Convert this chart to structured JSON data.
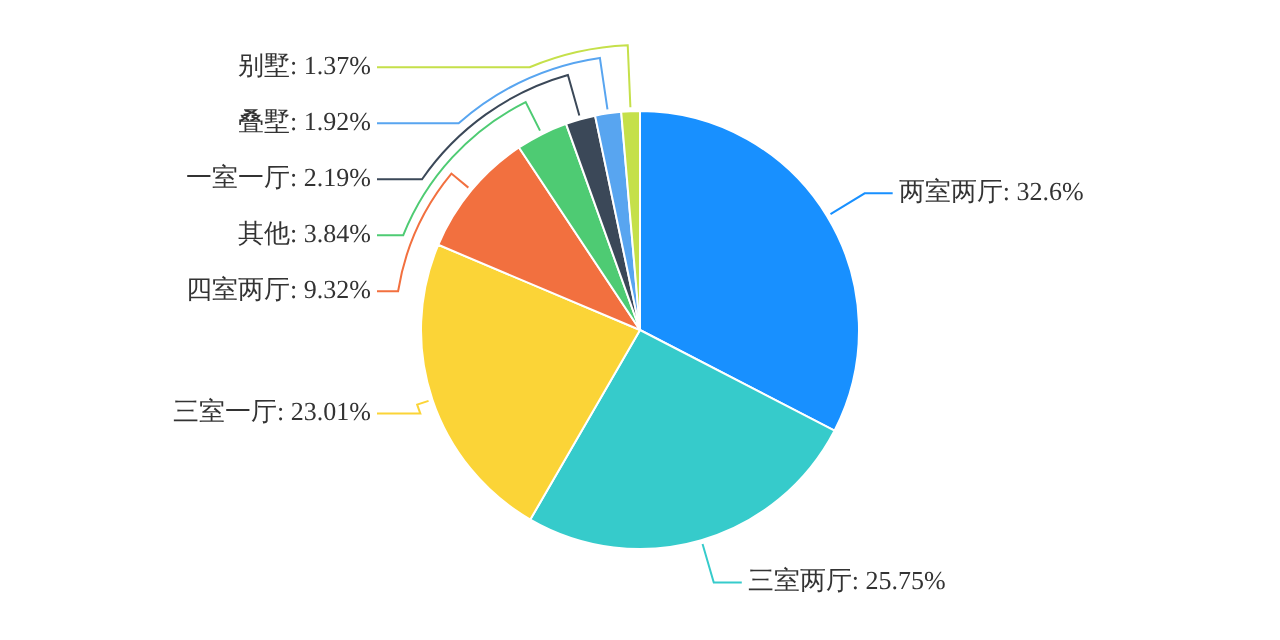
{
  "chart_data": {
    "type": "pie",
    "categories": [
      "两室两厅",
      "三室两厅",
      "三室一厅",
      "四室两厅",
      "其他",
      "一室一厅",
      "叠墅",
      "别墅"
    ],
    "values": [
      32.6,
      25.75,
      23.01,
      9.32,
      3.84,
      2.19,
      1.92,
      1.37
    ],
    "value_labels": [
      "32.6%",
      "25.75%",
      "23.01%",
      "9.32%",
      "3.84%",
      "2.19%",
      "1.92%",
      "1.37%"
    ],
    "colors": [
      "#1890ff",
      "#36cbcb",
      "#fbd437",
      "#f2703f",
      "#4ecb73",
      "#3b4858",
      "#58a5f0",
      "#c5e04a"
    ],
    "legend": false
  }
}
